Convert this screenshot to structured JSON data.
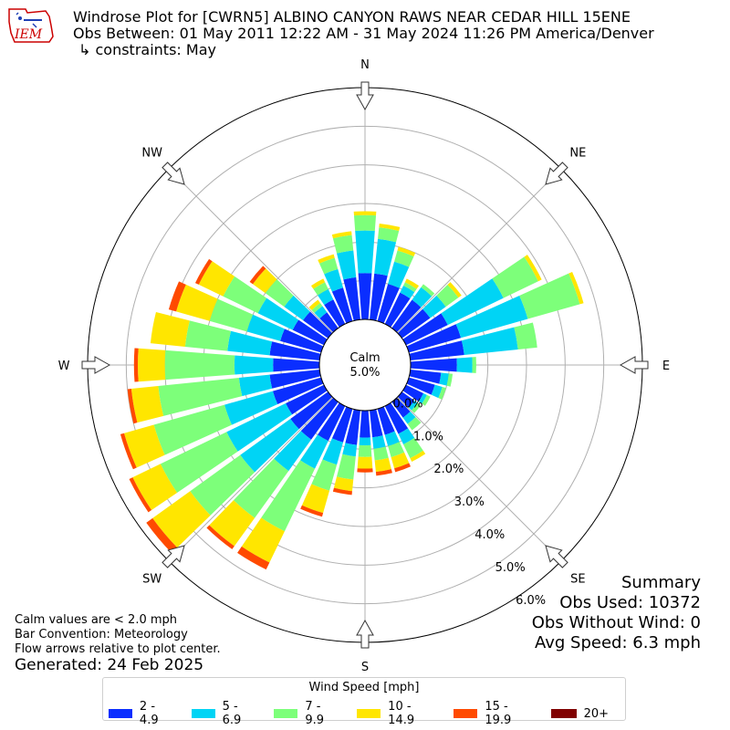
{
  "header": {
    "title_line1": "Windrose Plot for [CWRN5] ALBINO CANYON RAWS NEAR CEDAR HILL 15ENE",
    "title_line2": "Obs Between: 01 May 2011 12:22 AM - 31 May 2024 11:26 PM America/Denver",
    "title_line3": "↳ constraints: May",
    "logo_text": "IEM"
  },
  "center": {
    "calm_label": "Calm",
    "calm_value": "5.0%"
  },
  "notes": {
    "line1": "Calm values are < 2.0 mph",
    "line2": "Bar Convention: Meteorology",
    "line3": "Flow arrows relative to plot center.",
    "generated": "Generated: 24 Feb 2025"
  },
  "summary": {
    "title": "Summary",
    "obs_used": "Obs Used: 10372",
    "obs_without_wind": "Obs Without Wind: 0",
    "avg_speed": "Avg Speed: 6.3 mph"
  },
  "legend": {
    "title": "Wind Speed [mph]",
    "items": [
      {
        "label": "2 - 4.9",
        "color": "#0a2eff"
      },
      {
        "label": "5 - 6.9",
        "color": "#00d4f5"
      },
      {
        "label": "7 - 9.9",
        "color": "#7dff7a"
      },
      {
        "label": "10 - 14.9",
        "color": "#ffe600"
      },
      {
        "label": "15 - 19.9",
        "color": "#ff4a00"
      },
      {
        "label": "20+",
        "color": "#800000"
      }
    ]
  },
  "chart_data": {
    "type": "windrose",
    "calm_percent": 5.0,
    "radial_ticks": [
      "0.0%",
      "1.0%",
      "2.0%",
      "3.0%",
      "4.0%",
      "5.0%",
      "6.0%"
    ],
    "radial_max": 6.0,
    "compass_labels": [
      "N",
      "NE",
      "E",
      "SE",
      "S",
      "SW",
      "W",
      "NW"
    ],
    "speed_bins": [
      "2 - 4.9",
      "5 - 6.9",
      "7 - 9.9",
      "10 - 14.9",
      "15 - 19.9",
      "20+"
    ],
    "bin_colors": [
      "#0a2eff",
      "#00d4f5",
      "#7dff7a",
      "#ffe600",
      "#ff4a00",
      "#800000"
    ],
    "directions": [
      {
        "dir_deg": 0,
        "values": [
          1.2,
          1.1,
          0.4,
          0.1,
          0.0,
          0.0
        ]
      },
      {
        "dir_deg": 10,
        "values": [
          1.2,
          0.9,
          0.3,
          0.1,
          0.0,
          0.0
        ]
      },
      {
        "dir_deg": 20,
        "values": [
          1.0,
          0.6,
          0.3,
          0.1,
          0.0,
          0.0
        ]
      },
      {
        "dir_deg": 30,
        "values": [
          0.9,
          0.2,
          0.1,
          0.1,
          0.0,
          0.0
        ]
      },
      {
        "dir_deg": 40,
        "values": [
          0.9,
          0.4,
          0.1,
          0.0,
          0.0,
          0.0
        ]
      },
      {
        "dir_deg": 50,
        "values": [
          0.9,
          0.5,
          0.4,
          0.1,
          0.0,
          0.0
        ]
      },
      {
        "dir_deg": 60,
        "values": [
          1.2,
          1.6,
          1.0,
          0.1,
          0.0,
          0.0
        ]
      },
      {
        "dir_deg": 70,
        "values": [
          1.4,
          1.8,
          1.4,
          0.1,
          0.0,
          0.0
        ]
      },
      {
        "dir_deg": 80,
        "values": [
          1.4,
          1.4,
          0.5,
          0.0,
          0.0,
          0.0
        ]
      },
      {
        "dir_deg": 90,
        "values": [
          1.2,
          0.4,
          0.1,
          0.0,
          0.0,
          0.0
        ]
      },
      {
        "dir_deg": 100,
        "values": [
          0.8,
          0.2,
          0.1,
          0.0,
          0.0,
          0.0
        ]
      },
      {
        "dir_deg": 110,
        "values": [
          0.7,
          0.2,
          0.1,
          0.0,
          0.0,
          0.0
        ]
      },
      {
        "dir_deg": 120,
        "values": [
          0.5,
          0.1,
          0.1,
          0.0,
          0.0,
          0.0
        ]
      },
      {
        "dir_deg": 130,
        "values": [
          0.4,
          0.1,
          0.1,
          0.0,
          0.0,
          0.0
        ]
      },
      {
        "dir_deg": 140,
        "values": [
          0.5,
          0.2,
          0.2,
          0.0,
          0.0,
          0.0
        ]
      },
      {
        "dir_deg": 150,
        "values": [
          0.8,
          0.3,
          0.4,
          0.1,
          0.0,
          0.0
        ]
      },
      {
        "dir_deg": 160,
        "values": [
          0.7,
          0.3,
          0.3,
          0.3,
          0.1,
          0.0
        ]
      },
      {
        "dir_deg": 170,
        "values": [
          0.7,
          0.3,
          0.3,
          0.3,
          0.1,
          0.0
        ]
      },
      {
        "dir_deg": 180,
        "values": [
          0.7,
          0.2,
          0.3,
          0.3,
          0.1,
          0.0
        ]
      },
      {
        "dir_deg": 190,
        "values": [
          0.9,
          0.3,
          0.6,
          0.3,
          0.1,
          0.0
        ]
      },
      {
        "dir_deg": 200,
        "values": [
          0.9,
          0.6,
          0.7,
          0.6,
          0.1,
          0.0
        ]
      },
      {
        "dir_deg": 210,
        "values": [
          1.0,
          0.8,
          1.8,
          0.9,
          0.2,
          0.0
        ]
      },
      {
        "dir_deg": 220,
        "values": [
          1.2,
          1.0,
          1.5,
          0.9,
          0.1,
          0.0
        ]
      },
      {
        "dir_deg": 230,
        "values": [
          1.2,
          1.6,
          1.6,
          1.2,
          0.2,
          0.0
        ]
      },
      {
        "dir_deg": 240,
        "values": [
          1.1,
          1.7,
          1.9,
          0.8,
          0.1,
          0.0
        ]
      },
      {
        "dir_deg": 250,
        "values": [
          1.3,
          1.3,
          1.9,
          0.8,
          0.1,
          0.0
        ]
      },
      {
        "dir_deg": 260,
        "values": [
          1.3,
          0.8,
          2.1,
          0.7,
          0.1,
          0.0
        ]
      },
      {
        "dir_deg": 270,
        "values": [
          1.2,
          1.0,
          1.8,
          0.7,
          0.1,
          0.0
        ]
      },
      {
        "dir_deg": 280,
        "values": [
          1.3,
          1.1,
          1.1,
          0.9,
          0.0,
          0.0
        ]
      },
      {
        "dir_deg": 290,
        "values": [
          1.1,
          0.9,
          1.0,
          0.9,
          0.2,
          0.0
        ]
      },
      {
        "dir_deg": 300,
        "values": [
          0.9,
          1.0,
          1.0,
          0.7,
          0.1,
          0.0
        ]
      },
      {
        "dir_deg": 310,
        "values": [
          0.8,
          0.6,
          0.6,
          0.4,
          0.1,
          0.0
        ]
      },
      {
        "dir_deg": 320,
        "values": [
          0.5,
          0.2,
          0.1,
          0.1,
          0.0,
          0.0
        ]
      },
      {
        "dir_deg": 330,
        "values": [
          0.7,
          0.3,
          0.2,
          0.1,
          0.0,
          0.0
        ]
      },
      {
        "dir_deg": 340,
        "values": [
          0.9,
          0.5,
          0.3,
          0.1,
          0.0,
          0.0
        ]
      },
      {
        "dir_deg": 350,
        "values": [
          1.1,
          0.7,
          0.4,
          0.1,
          0.0,
          0.0
        ]
      }
    ]
  }
}
